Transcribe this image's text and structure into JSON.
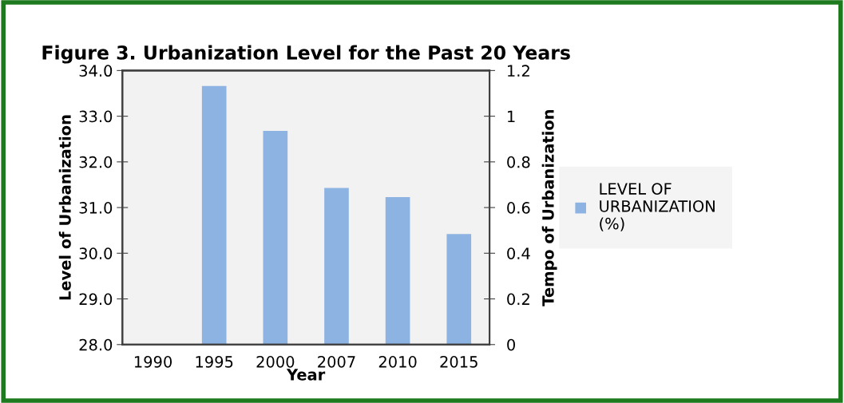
{
  "chart_data": {
    "type": "bar",
    "title": "Figure 3. Urbanization Level for the Past 20 Years",
    "xlabel": "Year",
    "ylabel": "Level of Urbanization",
    "y2label": "Tempo of Urbanization",
    "categories": [
      "1990",
      "1995",
      "2000",
      "2007",
      "2010",
      "2015"
    ],
    "series": [
      {
        "name": "LEVEL OF\nURBANIZATION\n(%)",
        "color": "#8db3e2",
        "values": [
          null,
          33.66,
          32.68,
          31.43,
          31.23,
          30.42
        ]
      }
    ],
    "ylim": [
      28,
      34
    ],
    "yticks": [
      {
        "value": 28,
        "label": "28.0"
      },
      {
        "value": 29,
        "label": "29.0"
      },
      {
        "value": 30,
        "label": "30.0"
      },
      {
        "value": 31,
        "label": "31.0"
      },
      {
        "value": 32,
        "label": "32.0"
      },
      {
        "value": 33,
        "label": "33.0"
      },
      {
        "value": 34,
        "label": "34.0"
      }
    ],
    "y2lim": [
      0,
      1.2
    ],
    "y2ticks": [
      0,
      0.2,
      0.4,
      0.6,
      0.8,
      1,
      1.2
    ],
    "grid": false,
    "legend": "right"
  }
}
